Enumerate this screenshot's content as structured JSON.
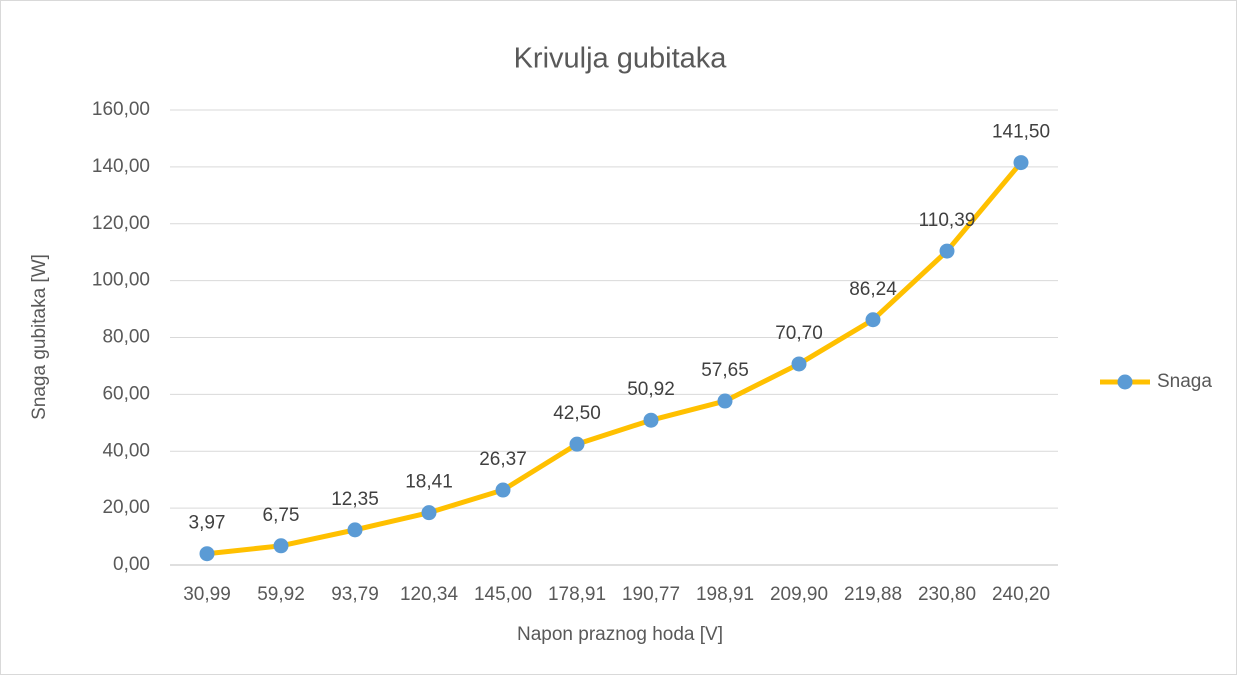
{
  "chart_data": {
    "type": "line",
    "title": "Krivulja gubitaka",
    "x_label": "Napon praznog hoda [V]",
    "y_label": "Snaga gubitaka [W]",
    "categories": [
      "30,99",
      "59,92",
      "93,79",
      "120,34",
      "145,00",
      "178,91",
      "190,77",
      "198,91",
      "209,90",
      "219,88",
      "230,80",
      "240,20"
    ],
    "series": [
      {
        "name": "Snaga",
        "color": "#FFC000",
        "marker_color": "#5B9BD5",
        "values": [
          3.97,
          6.75,
          12.35,
          18.41,
          26.37,
          42.5,
          50.92,
          57.65,
          70.7,
          86.24,
          110.39,
          141.5
        ],
        "value_labels": [
          "3,97",
          "6,75",
          "12,35",
          "18,41",
          "26,37",
          "42,50",
          "50,92",
          "57,65",
          "70,70",
          "86,24",
          "110,39",
          "141,50"
        ]
      }
    ],
    "ylim": [
      0,
      160
    ],
    "yticks": [
      {
        "value": 0,
        "label": "0,00"
      },
      {
        "value": 20,
        "label": "20,00"
      },
      {
        "value": 40,
        "label": "40,00"
      },
      {
        "value": 60,
        "label": "60,00"
      },
      {
        "value": 80,
        "label": "80,00"
      },
      {
        "value": 100,
        "label": "100,00"
      },
      {
        "value": 120,
        "label": "120,00"
      },
      {
        "value": 140,
        "label": "140,00"
      },
      {
        "value": 160,
        "label": "160,00"
      }
    ],
    "grid": true,
    "legend": "right"
  }
}
